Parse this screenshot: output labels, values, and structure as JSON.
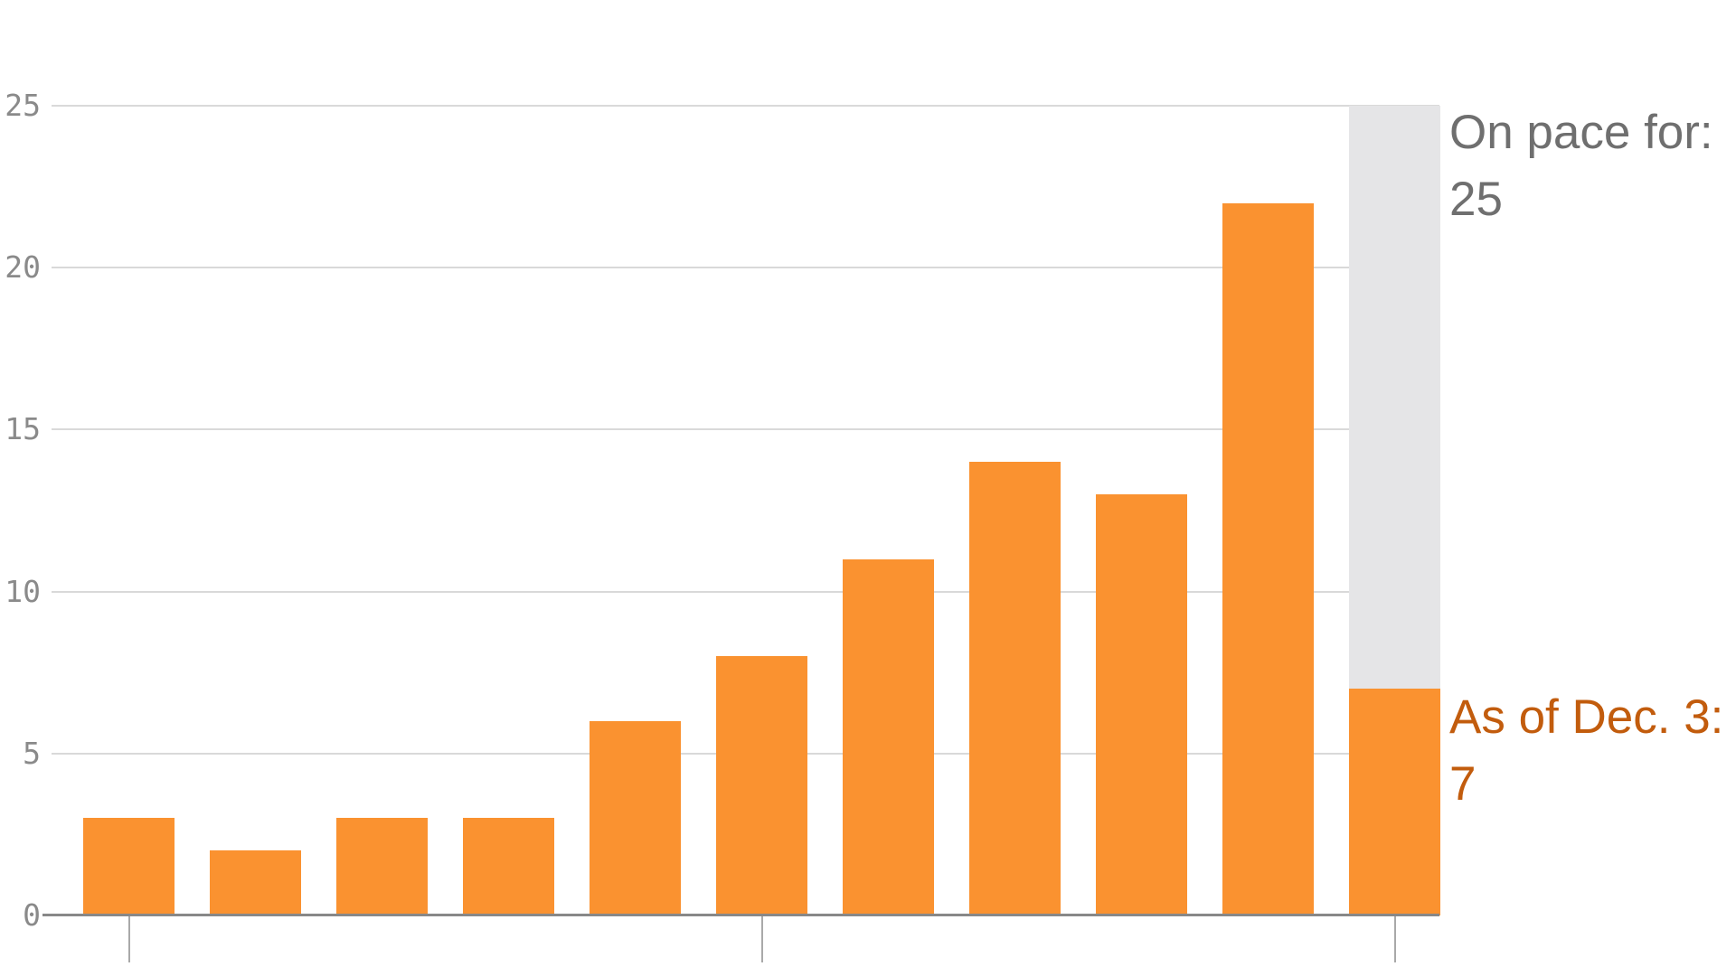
{
  "chart_data": {
    "type": "bar",
    "title": "",
    "values": [
      3,
      2,
      3,
      3,
      6,
      8,
      11,
      14,
      13,
      22,
      7
    ],
    "final_bar": {
      "actual": 7,
      "projected_total": 25
    },
    "ylim": [
      0,
      25
    ],
    "yticks": [
      0,
      5,
      10,
      15,
      20,
      25
    ],
    "x_axis_tick_bar_indexes": [
      0,
      5,
      10
    ],
    "x_tick_labels_visible": false,
    "grid": "horizontal",
    "legend": "none",
    "annotations": {
      "on_pace": {
        "label": "On pace for:",
        "value": "25"
      },
      "as_of": {
        "label": "As of Dec. 3:",
        "value": "7"
      }
    },
    "colors": {
      "bar": "#FA9230",
      "projection": "#E5E5E7",
      "gridline": "#D9D9D9",
      "axis_line": "#888888",
      "tick": "#A9A9A9",
      "axis_label": "#8A8A8A",
      "pace_text": "#6F6F6F",
      "as_of_text": "#C25C0D"
    }
  }
}
